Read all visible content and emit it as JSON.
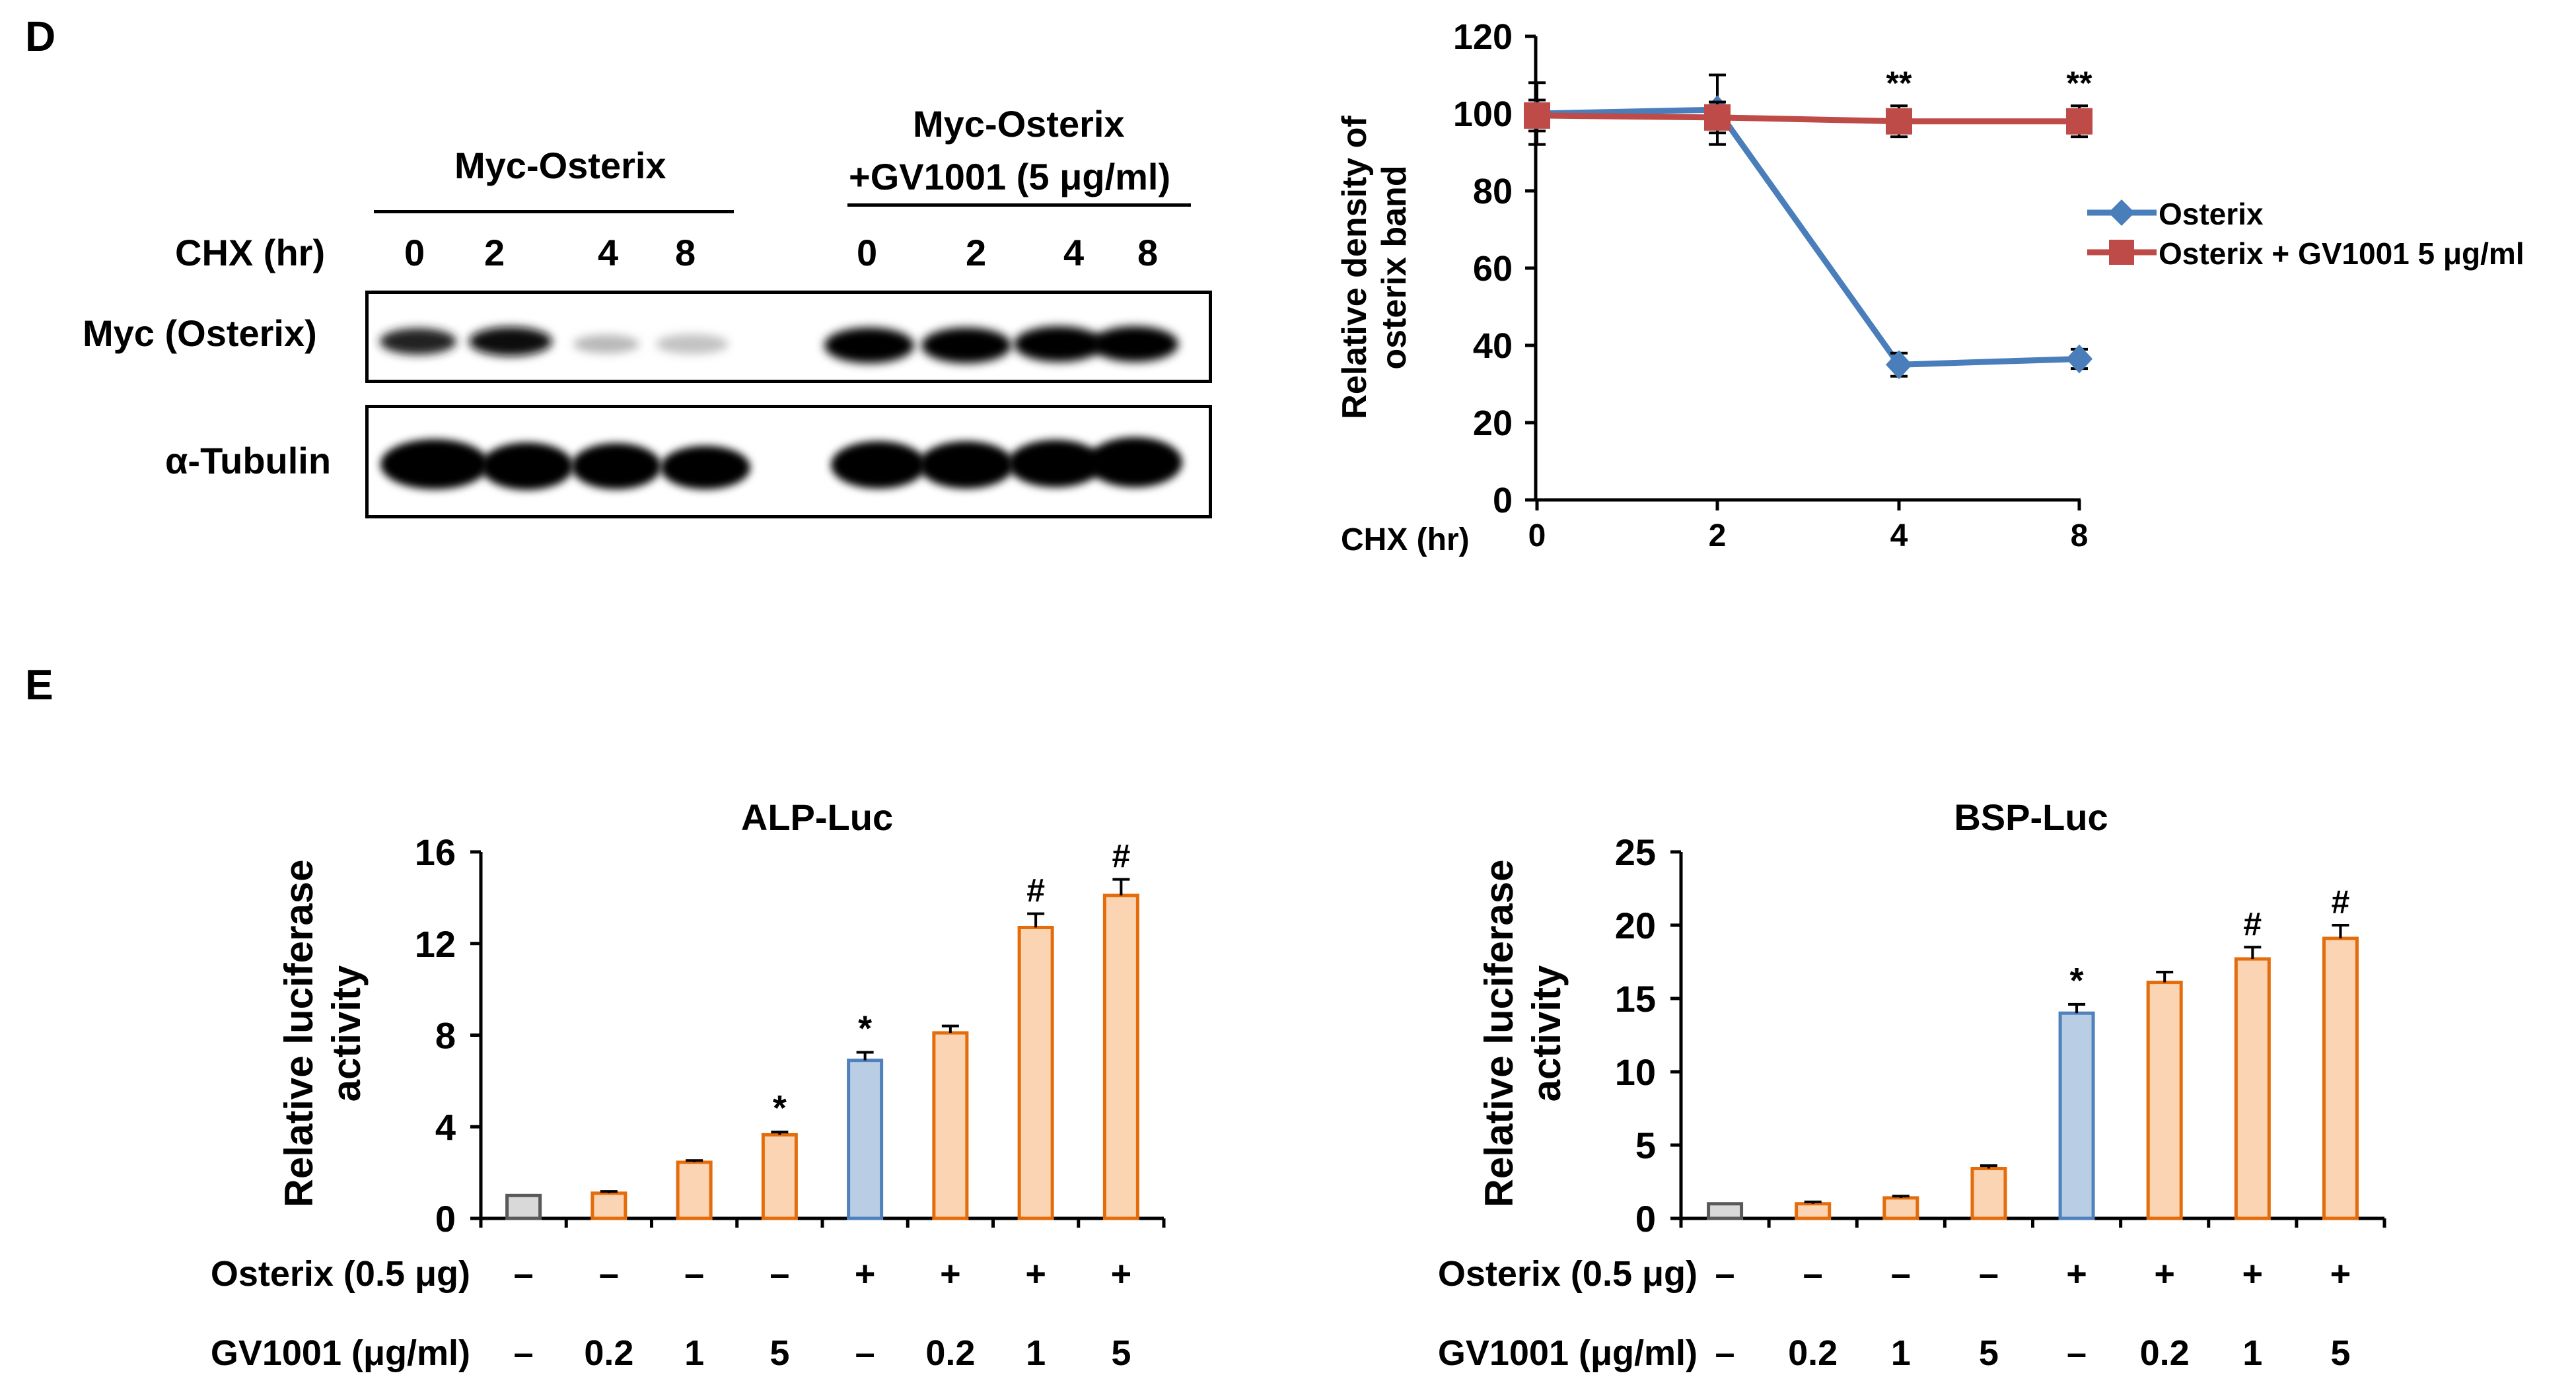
{
  "panel_d": {
    "letter": "D",
    "blot": {
      "group1_label": "Myc-Osterix",
      "group2_label_line1": "Myc-Osterix",
      "group2_label_line2": "+GV1001  (5 μg/ml)",
      "chx_label": "CHX (hr)",
      "lanes_group1": [
        "0",
        "2",
        "4",
        "8"
      ],
      "lanes_group2": [
        "0",
        "2",
        "4",
        "8"
      ],
      "row1_label": "Myc (Osterix)",
      "row2_label": "α-Tubulin"
    }
  },
  "panel_e": {
    "letter": "E"
  },
  "bar_rows": {
    "osterix_label": "Osterix (0.5 μg)",
    "osterix_values": [
      "–",
      "–",
      "–",
      "–",
      "+",
      "+",
      "+",
      "+"
    ],
    "gv1001_label": "GV1001 (μg/ml)",
    "gv1001_values": [
      "–",
      "0.2",
      "1",
      "5",
      "–",
      "0.2",
      "1",
      "5"
    ]
  },
  "colors": {
    "osterix_line": "#4a7ebb",
    "gv1001_line": "#be4b48",
    "control_fill": "#d9d9d9",
    "control_stroke": "#595959",
    "gv_fill": "#fbd4b4",
    "gv_stroke": "#e46c0a",
    "osx_fill": "#b9cde5",
    "osx_stroke": "#4f81bd"
  },
  "chart_data": [
    {
      "id": "line",
      "type": "line",
      "title": "",
      "xlabel": "CHX (hr)",
      "ylabel_line1": "Relative density of",
      "ylabel_line2": "osterix band",
      "x": [
        0,
        2,
        4,
        8
      ],
      "x_tick_labels": [
        "0",
        "2",
        "4",
        "8"
      ],
      "ylim": [
        0,
        120
      ],
      "yticks": [
        0,
        20,
        40,
        60,
        80,
        100,
        120
      ],
      "series": [
        {
          "name": "Osterix",
          "values": [
            100,
            101,
            35,
            36.5
          ],
          "errors": [
            8,
            9,
            3,
            2.5
          ]
        },
        {
          "name": "Osterix + GV1001 5 μg/ml",
          "values": [
            99.5,
            99,
            98,
            98
          ],
          "errors": [
            4,
            4,
            4,
            4
          ]
        }
      ],
      "annotations": [
        "",
        "",
        "**",
        "**"
      ],
      "legend_position": "right"
    },
    {
      "id": "alp",
      "type": "bar",
      "title": "ALP-Luc",
      "ylabel_line1": "Relative luciferase",
      "ylabel_line2": "activity",
      "ylim": [
        0,
        16
      ],
      "yticks": [
        0,
        4,
        8,
        12,
        16
      ],
      "values": [
        1.0,
        1.1,
        2.45,
        3.65,
        6.9,
        8.1,
        12.7,
        14.1
      ],
      "errors": [
        0,
        0.08,
        0.08,
        0.12,
        0.35,
        0.3,
        0.6,
        0.7
      ],
      "groups": [
        "control",
        "gv",
        "gv",
        "gv",
        "osx",
        "gv",
        "gv",
        "gv"
      ],
      "annotations": [
        "",
        "",
        "",
        "*",
        "*",
        "",
        "#",
        "#"
      ]
    },
    {
      "id": "bsp",
      "type": "bar",
      "title": "BSP-Luc",
      "ylabel_line1": "Relative luciferase",
      "ylabel_line2": "activity",
      "ylim": [
        0,
        25
      ],
      "yticks": [
        0,
        5,
        10,
        15,
        20,
        25
      ],
      "values": [
        1.0,
        1.0,
        1.4,
        3.4,
        14.0,
        16.1,
        17.7,
        19.1
      ],
      "errors": [
        0,
        0.12,
        0.12,
        0.2,
        0.6,
        0.7,
        0.8,
        0.9
      ],
      "groups": [
        "control",
        "gv",
        "gv",
        "gv",
        "osx",
        "gv",
        "gv",
        "gv"
      ],
      "annotations": [
        "",
        "",
        "",
        "",
        "*",
        "",
        "#",
        "#"
      ]
    }
  ]
}
